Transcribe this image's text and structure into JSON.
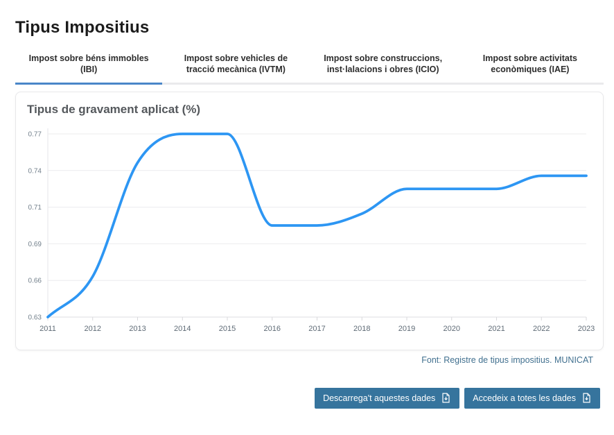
{
  "page": {
    "title": "Tipus Impositius"
  },
  "tabs": {
    "items": [
      {
        "label": "Impost sobre béns immobles (IBI)",
        "active": true
      },
      {
        "label": "Impost sobre vehicles de tracció mecànica (IVTM)",
        "active": false
      },
      {
        "label": "Impost sobre construccions, inst·lalacions i obres (ICIO)",
        "active": false
      },
      {
        "label": "Impost sobre activitats econòmiques (IAE)",
        "active": false
      }
    ]
  },
  "chart_data": {
    "type": "line",
    "title": "Tipus de gravament aplicat (%)",
    "x": [
      2011,
      2012,
      2013,
      2014,
      2015,
      2016,
      2017,
      2018,
      2019,
      2020,
      2021,
      2022,
      2023
    ],
    "values": [
      0.63,
      0.661,
      0.748,
      0.77,
      0.77,
      0.7,
      0.7,
      0.709,
      0.728,
      0.728,
      0.728,
      0.738,
      0.738
    ],
    "xlabel": "",
    "ylabel": "",
    "ylim": [
      0.63,
      0.77
    ],
    "y_tick_labels_top_to_bottom": [
      "0.77",
      "0.74",
      "0.71",
      "0.69",
      "0.66",
      "0.63"
    ],
    "grid": true,
    "legend": false,
    "smooth": true,
    "line_color": "#2d96f3"
  },
  "footer": {
    "source": "Font: Registre de tipus impositius. MUNICAT"
  },
  "actions": {
    "download": "Descarrega't aquestes dades",
    "access_all": "Accedeix a totes les dades"
  },
  "colors": {
    "accent_tab": "#4a86c8",
    "line": "#2d96f3",
    "button_bg": "#36749d",
    "source_text": "#41708f"
  },
  "icons": {
    "button_icon": "download-file-icon"
  }
}
